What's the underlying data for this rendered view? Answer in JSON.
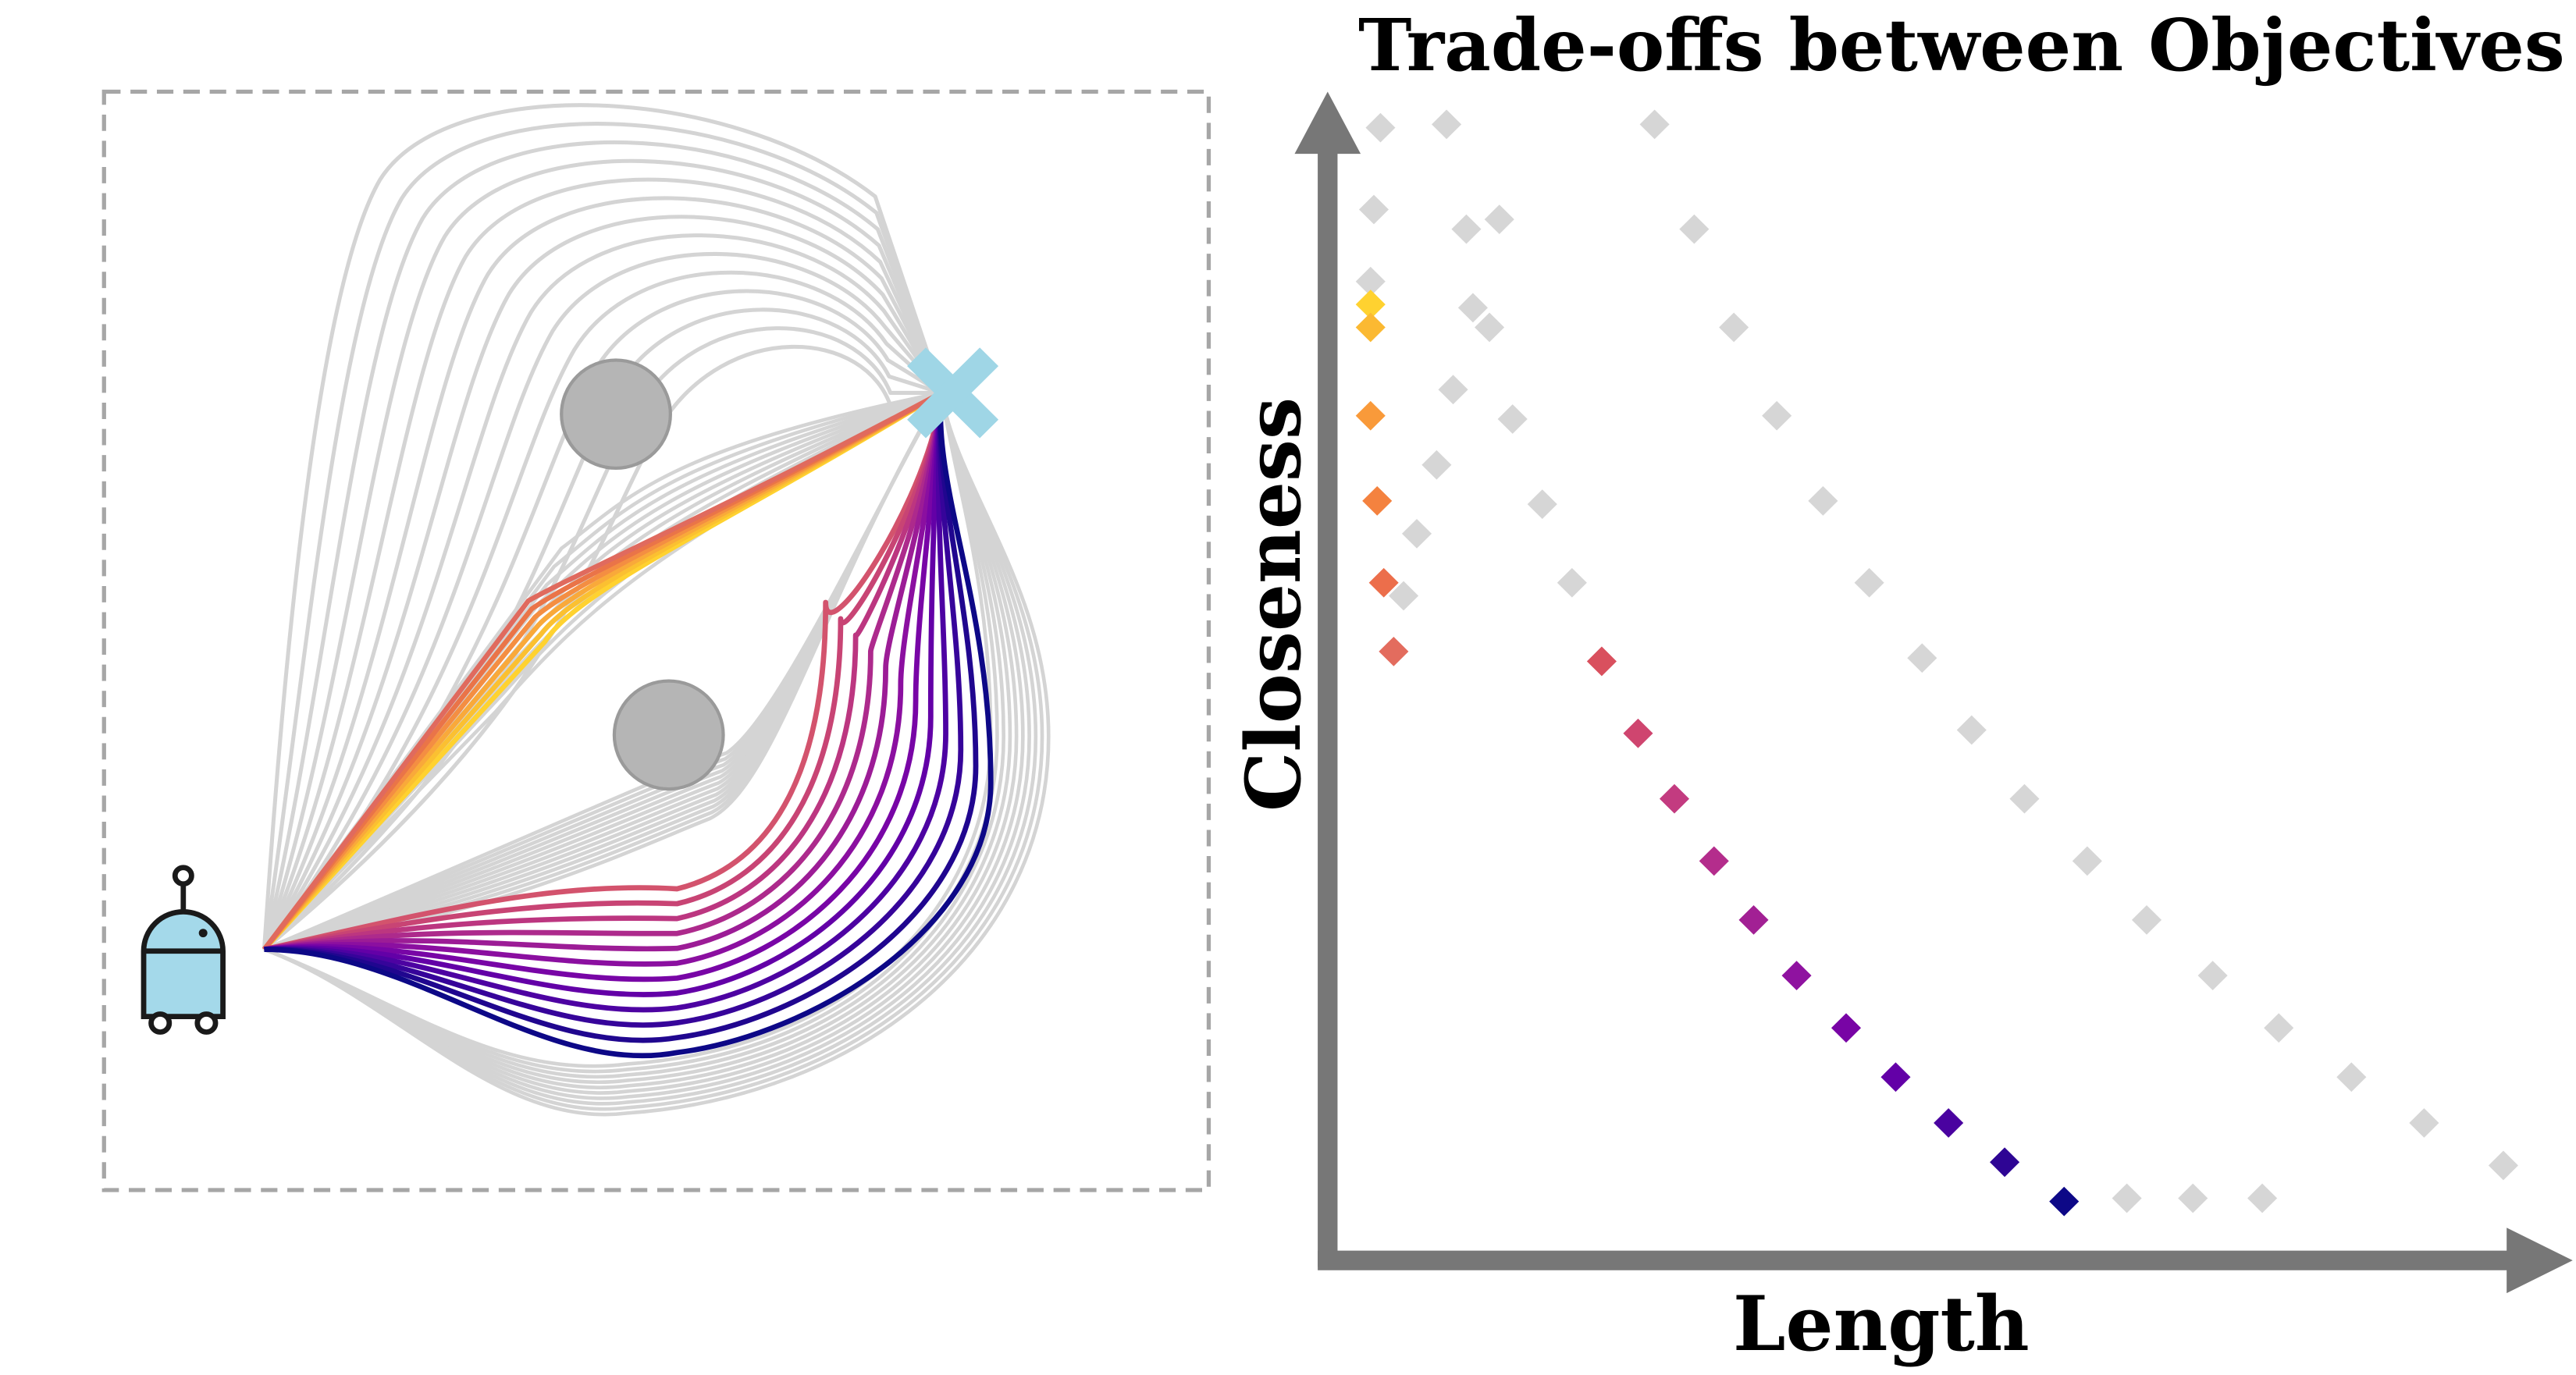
{
  "figure": {
    "title": "Trade-offs between Objectives",
    "xlabel": "Length",
    "ylabel": "Closeness"
  },
  "colors": {
    "background_path": "#d4d4d4",
    "obstacle": "#b3b3b3",
    "obstacle_edge": "#999999",
    "goal_marker": "#9fd6e6",
    "robot_body": "#a4d9ea",
    "robot_outline": "#1a1a1a",
    "axis": "#777777",
    "grey_point": "#d6d6d6",
    "palette": [
      "#ffd230",
      "#fca636",
      "#f0804d",
      "#e06a5e",
      "#d3536d",
      "#c13c80",
      "#a82296",
      "#8f0da4",
      "#6a00a8",
      "#4c02a1",
      "#2c0594",
      "#0d0887"
    ]
  },
  "icons": [
    "robot-icon",
    "goal-x-icon",
    "obstacle-circle-icon"
  ],
  "chart_data": {
    "type": "scatter",
    "title": "Trade-offs between Objectives",
    "xlabel": "Length",
    "ylabel": "Closeness",
    "grid": false,
    "series": [
      {
        "color": "#d6d6d6",
        "points": [
          [
            836,
            78
          ],
          [
            876,
            76
          ],
          [
            1002,
            76
          ],
          [
            832,
            128
          ],
          [
            888,
            140
          ],
          [
            908,
            134
          ],
          [
            1026,
            140
          ],
          [
            830,
            172
          ],
          [
            892,
            188
          ],
          [
            902,
            200
          ],
          [
            1050,
            200
          ],
          [
            880,
            238
          ],
          [
            916,
            256
          ],
          [
            1076,
            254
          ],
          [
            870,
            284
          ],
          [
            934,
            308
          ],
          [
            1104,
            306
          ],
          [
            858,
            326
          ],
          [
            850,
            364
          ],
          [
            952,
            356
          ],
          [
            1132,
            356
          ],
          [
            1164,
            402
          ],
          [
            1194,
            446
          ],
          [
            1226,
            488
          ],
          [
            1264,
            526
          ],
          [
            1300,
            562
          ],
          [
            1340,
            596
          ],
          [
            1380,
            628
          ],
          [
            1424,
            658
          ],
          [
            1468,
            686
          ],
          [
            1516,
            712
          ],
          [
            1288,
            732
          ],
          [
            1328,
            732
          ],
          [
            1370,
            732
          ]
        ]
      },
      {
        "color": "gradient",
        "points": [
          [
            830,
            186
          ],
          [
            830,
            200
          ],
          [
            830,
            254
          ],
          [
            834,
            306
          ],
          [
            838,
            356
          ],
          [
            844,
            398
          ],
          [
            970,
            404
          ],
          [
            992,
            448
          ],
          [
            1014,
            488
          ],
          [
            1038,
            526
          ],
          [
            1062,
            562
          ],
          [
            1088,
            596
          ],
          [
            1118,
            628
          ],
          [
            1148,
            658
          ],
          [
            1180,
            686
          ],
          [
            1214,
            710
          ],
          [
            1250,
            734
          ]
        ],
        "colors": [
          "#ffd230",
          "#fbb932",
          "#f99a3a",
          "#f4823f",
          "#ec6e4b",
          "#e36c5e",
          "#d9505e",
          "#cf456f",
          "#c33b80",
          "#b42d8c",
          "#a22094",
          "#8f12a0",
          "#7804a5",
          "#6300a7",
          "#4a02a0",
          "#2e0594",
          "#0d0887"
        ]
      }
    ]
  }
}
